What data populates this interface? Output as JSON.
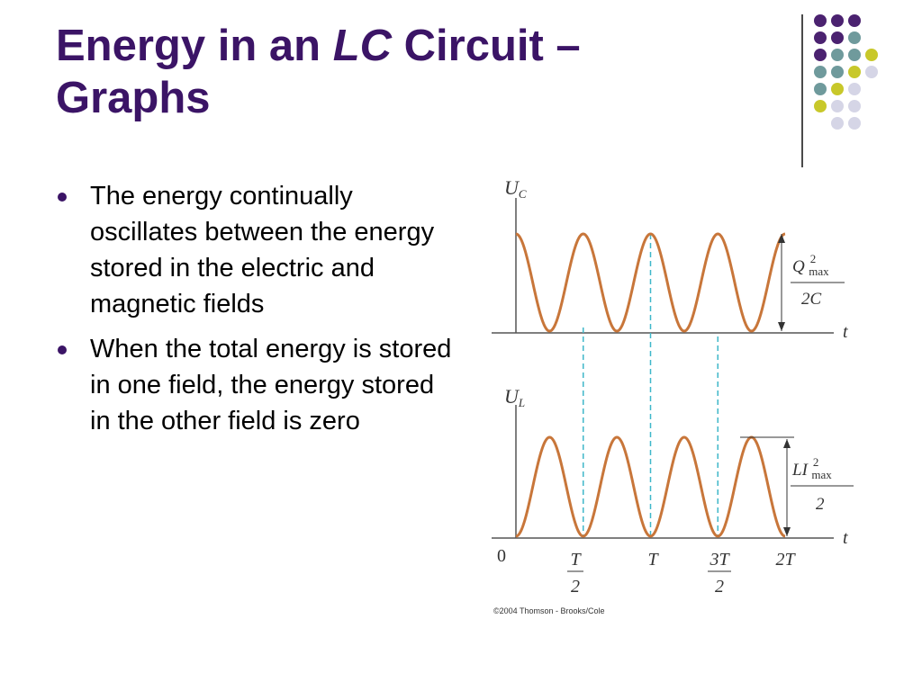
{
  "slide": {
    "title_part1": "Energy in an ",
    "title_italic": "LC",
    "title_part2": " Circuit –",
    "title_line2": "Graphs",
    "bullets": [
      "The energy continually oscillates between the energy stored in the electric and magnetic fields",
      "When the total energy is stored in one field, the energy stored in the other field is zero"
    ]
  },
  "decoration": {
    "dot_colors": {
      "purple": "#4b2270",
      "teal": "#6f9a9c",
      "yellow": "#c8c82a",
      "lavender": "#d5d5e6"
    },
    "grid": [
      [
        "purple",
        "purple",
        "purple",
        "none"
      ],
      [
        "purple",
        "purple",
        "teal",
        "none"
      ],
      [
        "purple",
        "teal",
        "teal",
        "yellow"
      ],
      [
        "teal",
        "teal",
        "yellow",
        "lavender"
      ],
      [
        "teal",
        "yellow",
        "lavender",
        "none"
      ],
      [
        "yellow",
        "lavender",
        "lavender",
        "none"
      ],
      [
        "none",
        "lavender",
        "lavender",
        "none"
      ]
    ]
  },
  "figure": {
    "top_graph": {
      "y_axis_label": "U",
      "y_axis_sub": "C",
      "x_axis_label": "t",
      "amplitude_numerator": "Q",
      "amplitude_num_sup": "2",
      "amplitude_num_sub": "max",
      "amplitude_denominator": "2C"
    },
    "bottom_graph": {
      "y_axis_label": "U",
      "y_axis_sub": "L",
      "x_axis_label": "t",
      "amplitude_numerator": "LI",
      "amplitude_num_sup": "2",
      "amplitude_num_sub": "max",
      "amplitude_denominator": "2"
    },
    "x_ticks": [
      "0",
      "T",
      "2",
      "T",
      "3T",
      "2",
      "2T"
    ],
    "copyright": "©2004 Thomson - Brooks/Cole",
    "curve_color": "#c8763a",
    "guide_color": "#3fb7c9"
  },
  "chart_data": [
    {
      "type": "line",
      "title": "",
      "ylabel": "U_C",
      "xlabel": "t",
      "x_unit": "T",
      "x_range": [
        0,
        2
      ],
      "function": "U_C = (Q_max^2 / 2C) cos^2(2π t / T)",
      "series": [
        {
          "x": [
            0,
            0.25,
            0.5,
            0.75,
            1,
            1.25,
            1.5,
            1.75,
            2
          ],
          "y": [
            1,
            0,
            1,
            0,
            1,
            0,
            1,
            0,
            1
          ]
        }
      ],
      "ylim": [
        0,
        1
      ]
    },
    {
      "type": "line",
      "title": "",
      "ylabel": "U_L",
      "xlabel": "t",
      "x_unit": "T",
      "x_range": [
        0,
        2
      ],
      "function": "U_L = (L I_max^2 / 2) sin^2(2π t / T)",
      "series": [
        {
          "x": [
            0,
            0.25,
            0.5,
            0.75,
            1,
            1.25,
            1.5,
            1.75,
            2
          ],
          "y": [
            0,
            1,
            0,
            1,
            0,
            1,
            0,
            1,
            0
          ]
        }
      ],
      "ylim": [
        0,
        1
      ]
    }
  ]
}
